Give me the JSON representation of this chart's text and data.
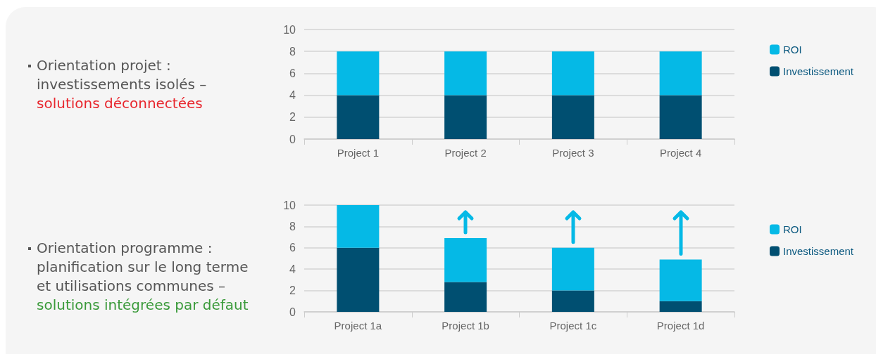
{
  "chart_data": [
    {
      "type": "bar",
      "stacked": true,
      "categories": [
        "Project 1",
        "Project 2",
        "Project 3",
        "Project 4"
      ],
      "series": [
        {
          "name": "Investissement",
          "color": "#004f71",
          "values": [
            4,
            4,
            4,
            4
          ]
        },
        {
          "name": "ROI",
          "color": "#05b9e6",
          "values": [
            4,
            4,
            4,
            4
          ]
        }
      ],
      "ylim": [
        0,
        10
      ],
      "yticks": [
        0,
        2,
        4,
        6,
        8,
        10
      ],
      "grid": "y",
      "legend": "right",
      "annotations": [
        "Orientation projet :",
        "investissements isolés –",
        "solutions déconnectées"
      ]
    },
    {
      "type": "bar",
      "stacked": true,
      "categories": [
        "Project 1a",
        "Project 1b",
        "Project 1c",
        "Project 1d"
      ],
      "series": [
        {
          "name": "Investissement",
          "color": "#004f71",
          "values": [
            6,
            2.8,
            2,
            1
          ]
        },
        {
          "name": "ROI",
          "color": "#05b9e6",
          "values": [
            4,
            4.1,
            4,
            3.9
          ]
        }
      ],
      "ylim": [
        0,
        10
      ],
      "yticks": [
        0,
        2,
        4,
        6,
        8,
        10
      ],
      "grid": "y",
      "legend": "right",
      "annotations": [
        "Orientation programme :",
        "planification sur le long terme",
        "et utilisations communes –",
        "solutions intégrées par défaut"
      ]
    }
  ]
}
